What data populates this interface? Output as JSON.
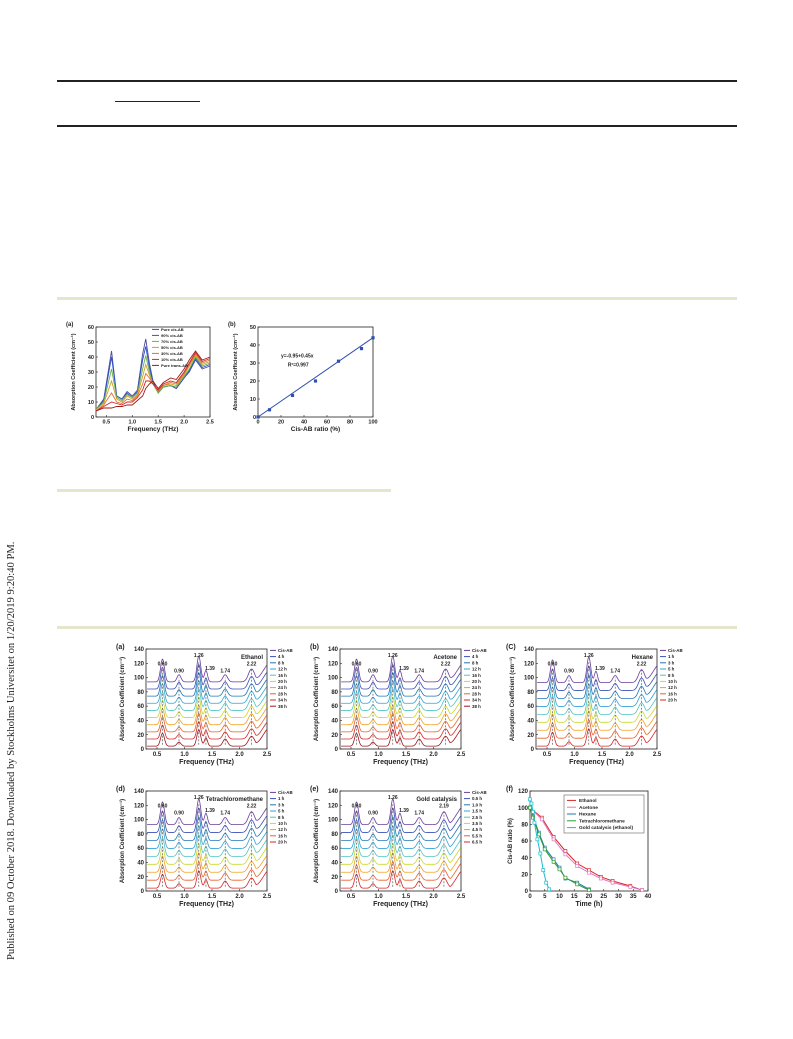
{
  "sidebar_note": "Published on 09 October 2018. Downloaded by Stockholms Universitet on 1/20/2019 9:20:40 PM.",
  "fig1": {
    "a": {
      "panel_label": "(a)",
      "xlabel": "Frequency (THz)",
      "ylabel": "Absorption Coefficient (cm⁻¹)",
      "xlim": [
        0.3,
        2.5
      ],
      "ylim": [
        0,
        60
      ],
      "xticks": [
        "0.5",
        "1.0",
        "1.5",
        "2.0",
        "2.5"
      ],
      "yticks": [
        "0",
        "10",
        "20",
        "30",
        "40",
        "50",
        "60"
      ],
      "legend": [
        "Pure cis-AB",
        "90% cis-AB",
        "70% cis-AB",
        "50% cis-AB",
        "30% cis-AB",
        "10% cis-AB",
        "Pure trans-AB"
      ]
    },
    "b": {
      "panel_label": "(b)",
      "xlabel": "Cis-AB ratio (%)",
      "ylabel": "Absorption Coefficient (cm⁻¹)",
      "xlim": [
        0,
        100
      ],
      "ylim": [
        0,
        50
      ],
      "xticks": [
        "0",
        "20",
        "40",
        "60",
        "80",
        "100"
      ],
      "yticks": [
        "0",
        "10",
        "20",
        "30",
        "40",
        "50"
      ],
      "equation": "y=-0.95+0.45x",
      "r2": "R²=0.997"
    }
  },
  "chart_data": [
    {
      "type": "line",
      "panel": "(a)",
      "x": [
        0.3,
        0.45,
        0.6,
        0.7,
        0.8,
        0.9,
        1.0,
        1.1,
        1.2,
        1.26,
        1.33,
        1.4,
        1.5,
        1.6,
        1.74,
        1.85,
        2.0,
        2.1,
        2.22,
        2.35,
        2.5
      ],
      "series": [
        {
          "name": "Pure cis-AB",
          "values": [
            5,
            12,
            44,
            14,
            12,
            17,
            14,
            18,
            42,
            52,
            36,
            24,
            16,
            20,
            21,
            19,
            26,
            30,
            38,
            32,
            34
          ]
        },
        {
          "name": "90% cis-AB",
          "values": [
            5,
            11,
            40,
            14,
            12,
            16,
            13,
            17,
            38,
            47,
            33,
            23,
            16,
            20,
            21,
            19,
            26,
            31,
            39,
            33,
            35
          ]
        },
        {
          "name": "70% cis-AB",
          "values": [
            5,
            10,
            32,
            13,
            11,
            15,
            13,
            16,
            32,
            41,
            30,
            22,
            16,
            20,
            21,
            20,
            27,
            32,
            40,
            34,
            36
          ]
        },
        {
          "name": "50% cis-AB",
          "values": [
            5,
            9,
            24,
            12,
            10,
            14,
            12,
            15,
            27,
            35,
            28,
            22,
            17,
            21,
            22,
            21,
            28,
            34,
            41,
            35,
            37
          ]
        },
        {
          "name": "30% cis-AB",
          "values": [
            4,
            8,
            16,
            10,
            9,
            12,
            11,
            14,
            22,
            29,
            26,
            22,
            17,
            21,
            23,
            22,
            29,
            35,
            42,
            36,
            38
          ]
        },
        {
          "name": "10% cis-AB",
          "values": [
            4,
            7,
            10,
            9,
            8,
            10,
            10,
            13,
            18,
            24,
            24,
            22,
            18,
            22,
            24,
            23,
            30,
            36,
            43,
            37,
            39
          ]
        },
        {
          "name": "Pure trans-AB",
          "values": [
            4,
            6,
            6,
            7,
            7,
            8,
            8,
            11,
            14,
            19,
            22,
            24,
            19,
            23,
            26,
            25,
            32,
            38,
            44,
            38,
            40
          ]
        }
      ],
      "xlabel": "Frequency (THz)",
      "ylabel": "Absorption Coefficient (cm⁻¹)",
      "xlim": [
        0.3,
        2.5
      ],
      "ylim": [
        0,
        60
      ]
    },
    {
      "type": "scatter",
      "panel": "(b)",
      "x": [
        0,
        10,
        30,
        50,
        70,
        90,
        100
      ],
      "y": [
        0,
        4,
        12,
        20,
        31,
        38,
        44
      ],
      "fit": {
        "intercept": -0.95,
        "slope": 0.45
      },
      "xlabel": "Cis-AB ratio (%)",
      "ylabel": "Absorption Coefficient (cm⁻¹)",
      "xlim": [
        0,
        100
      ],
      "ylim": [
        0,
        50
      ]
    },
    {
      "type": "line",
      "panel": "(a)",
      "title": "Ethanol",
      "legend": [
        "Cis-AB",
        "4 h",
        "8 h",
        "12 h",
        "16 h",
        "20 h",
        "24 h",
        "28 h",
        "34 h",
        "38 h"
      ],
      "peaks": [
        "0.60",
        "0.90",
        "1.26",
        "1.39",
        "1.74",
        "2.22"
      ],
      "xlim": [
        0.3,
        2.5
      ],
      "ylim": [
        0,
        140
      ]
    },
    {
      "type": "line",
      "panel": "(b)",
      "title": "Acetone",
      "legend": [
        "Cis-AB",
        "4 h",
        "8 h",
        "12 h",
        "16 h",
        "20 h",
        "24 h",
        "28 h",
        "34 h",
        "38 h"
      ],
      "peaks": [
        "0.60",
        "0.90",
        "1.26",
        "1.39",
        "1.74",
        "2.22"
      ],
      "xlim": [
        0.3,
        2.5
      ],
      "ylim": [
        0,
        140
      ]
    },
    {
      "type": "line",
      "panel": "(C)",
      "title": "Hexane",
      "legend": [
        "Cis-AB",
        "1 h",
        "3 h",
        "5 h",
        "8 h",
        "10 h",
        "12 h",
        "16 h",
        "20 h"
      ],
      "peaks": [
        "0.60",
        "0.90",
        "1.26",
        "1.39",
        "1.74",
        "2.22"
      ],
      "xlim": [
        0.3,
        2.5
      ],
      "ylim": [
        0,
        140
      ]
    },
    {
      "type": "line",
      "panel": "(d)",
      "title": "Tetrachloromethane",
      "legend": [
        "Cis-AB",
        "1 h",
        "3 h",
        "5 h",
        "8 h",
        "10 h",
        "12 h",
        "16 h",
        "20 h"
      ],
      "peaks": [
        "0.60",
        "0.90",
        "1.26",
        "1.39",
        "1.74",
        "2.22"
      ],
      "xlim": [
        0.3,
        2.5
      ],
      "ylim": [
        0,
        140
      ]
    },
    {
      "type": "line",
      "panel": "(e)",
      "title": "Gold catalysis",
      "legend": [
        "Cis-AB",
        "0.5 h",
        "1.0 h",
        "1.5 h",
        "2.5 h",
        "3.5 h",
        "4.5 h",
        "5.5 h",
        "6.5 h"
      ],
      "peaks": [
        "0.60",
        "0.90",
        "1.26",
        "1.39",
        "1.74",
        "2.19"
      ],
      "xlim": [
        0.3,
        2.5
      ],
      "ylim": [
        0,
        140
      ]
    },
    {
      "type": "line",
      "panel": "(f)",
      "xlabel": "Time (h)",
      "ylabel": "Cis-AB ratio (%)",
      "xlim": [
        0,
        40
      ],
      "ylim": [
        0,
        120
      ],
      "series": [
        {
          "name": "Ethanol",
          "x": [
            0,
            4,
            8,
            12,
            16,
            20,
            24,
            28,
            34,
            38
          ],
          "values": [
            100,
            88,
            65,
            48,
            33,
            25,
            17,
            12,
            6,
            1
          ]
        },
        {
          "name": "Acetone",
          "x": [
            0,
            4,
            8,
            12,
            16,
            20,
            24,
            28,
            34,
            38
          ],
          "values": [
            100,
            86,
            62,
            44,
            30,
            22,
            15,
            10,
            5,
            1
          ]
        },
        {
          "name": "Hexane",
          "x": [
            0,
            1,
            3,
            5,
            8,
            10,
            12,
            16,
            20
          ],
          "values": [
            100,
            90,
            70,
            52,
            38,
            28,
            15,
            10,
            2
          ]
        },
        {
          "name": "Tetrachloromethane",
          "x": [
            0,
            1,
            3,
            5,
            8,
            10,
            12,
            16,
            20
          ],
          "values": [
            100,
            88,
            68,
            50,
            35,
            26,
            16,
            8,
            1
          ]
        },
        {
          "name": "Gold catalysis (ethanol)",
          "x": [
            0,
            0.5,
            1,
            1.5,
            2.5,
            3.5,
            4.5,
            5.5,
            6.5
          ],
          "values": [
            110,
            105,
            95,
            82,
            62,
            45,
            25,
            10,
            2
          ]
        }
      ]
    }
  ],
  "fig2_axes": {
    "xlabel": "Frequency (THz)",
    "ylabel": "Absorption Coefficient (cm⁻¹)",
    "xticks": [
      "0.5",
      "1.0",
      "1.5",
      "2.0",
      "2.5"
    ],
    "yticks": [
      "0",
      "20",
      "40",
      "60",
      "80",
      "100",
      "120",
      "140"
    ],
    "f_xticks": [
      "0",
      "5",
      "10",
      "15",
      "20",
      "25",
      "30",
      "35",
      "40"
    ],
    "f_yticks": [
      "0",
      "20",
      "40",
      "60",
      "80",
      "100",
      "120"
    ],
    "f_panel_label": "(f)"
  },
  "colors": {
    "curve_palette": [
      "#6a3d9a",
      "#3b4fb8",
      "#1f78b4",
      "#33a0d6",
      "#4fc3c3",
      "#c7d92e",
      "#f0a020",
      "#e8612c",
      "#d62728",
      "#a0161e"
    ],
    "f_series": [
      "#d62728",
      "#e377c2",
      "#1f77b4",
      "#2ca02c",
      "#17becf"
    ]
  }
}
